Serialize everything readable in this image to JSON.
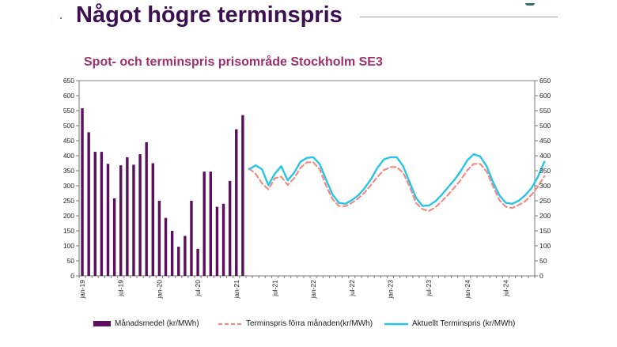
{
  "slide": {
    "title": "Något högre terminspris"
  },
  "colors": {
    "title": "#3b0f50",
    "chart_title": "#9b2f6e",
    "bars": "#5b0f5e",
    "forward_prev": "#f08c84",
    "forward_current": "#27c4e8"
  },
  "chart_data": {
    "type": "bar",
    "title": "Spot- och terminspris prisområde Stockholm SE3",
    "xlabel": "",
    "ylabel": "",
    "ylim": [
      0,
      650
    ],
    "y2lim": [
      0,
      650
    ],
    "yticks": [
      0,
      50,
      100,
      150,
      200,
      250,
      300,
      350,
      400,
      450,
      500,
      550,
      600,
      650
    ],
    "grid": false,
    "legend_position": "bottom",
    "x_tick_labels": [
      {
        "label": "jan-19",
        "month": 0
      },
      {
        "label": "jul-19",
        "month": 6
      },
      {
        "label": "jan-20",
        "month": 12
      },
      {
        "label": "jul-20",
        "month": 18
      },
      {
        "label": "jan-21",
        "month": 24
      },
      {
        "label": "jul-21",
        "month": 30
      },
      {
        "label": "jan-22",
        "month": 36
      },
      {
        "label": "jul-22",
        "month": 42
      },
      {
        "label": "jan-23",
        "month": 48
      },
      {
        "label": "jul-23",
        "month": 54
      },
      {
        "label": "jan-24",
        "month": 60
      },
      {
        "label": "jul-24",
        "month": 66
      }
    ],
    "series": [
      {
        "name": "Månadsmedel (kr/MWh)",
        "kind": "bar",
        "start_month": 0,
        "values": [
          558,
          478,
          413,
          413,
          373,
          258,
          368,
          395,
          370,
          405,
          445,
          375,
          250,
          193,
          150,
          97,
          133,
          250,
          90,
          347,
          347,
          230,
          240,
          316,
          488,
          535
        ]
      },
      {
        "name": "Terminspris förra månaden(kr/MWh)",
        "kind": "line",
        "style": "dashed",
        "start_month": 26,
        "values": [
          357,
          340,
          308,
          288,
          325,
          330,
          303,
          325,
          360,
          378,
          378,
          355,
          300,
          255,
          232,
          232,
          243,
          258,
          278,
          303,
          330,
          352,
          362,
          362,
          343,
          298,
          243,
          222,
          216,
          228,
          248,
          270,
          295,
          320,
          352,
          373,
          373,
          348,
          298,
          252,
          230,
          226,
          236,
          248,
          270,
          298,
          332
        ]
      },
      {
        "name": "Aktuellt Terminspris (kr/MWh)",
        "kind": "line",
        "style": "solid",
        "start_month": 26,
        "values": [
          355,
          368,
          355,
          302,
          340,
          365,
          318,
          343,
          380,
          393,
          395,
          372,
          320,
          270,
          243,
          240,
          252,
          268,
          292,
          322,
          360,
          388,
          395,
          395,
          365,
          312,
          260,
          233,
          234,
          248,
          270,
          295,
          320,
          350,
          385,
          405,
          398,
          365,
          312,
          268,
          243,
          240,
          250,
          268,
          292,
          330,
          380
        ]
      }
    ]
  }
}
